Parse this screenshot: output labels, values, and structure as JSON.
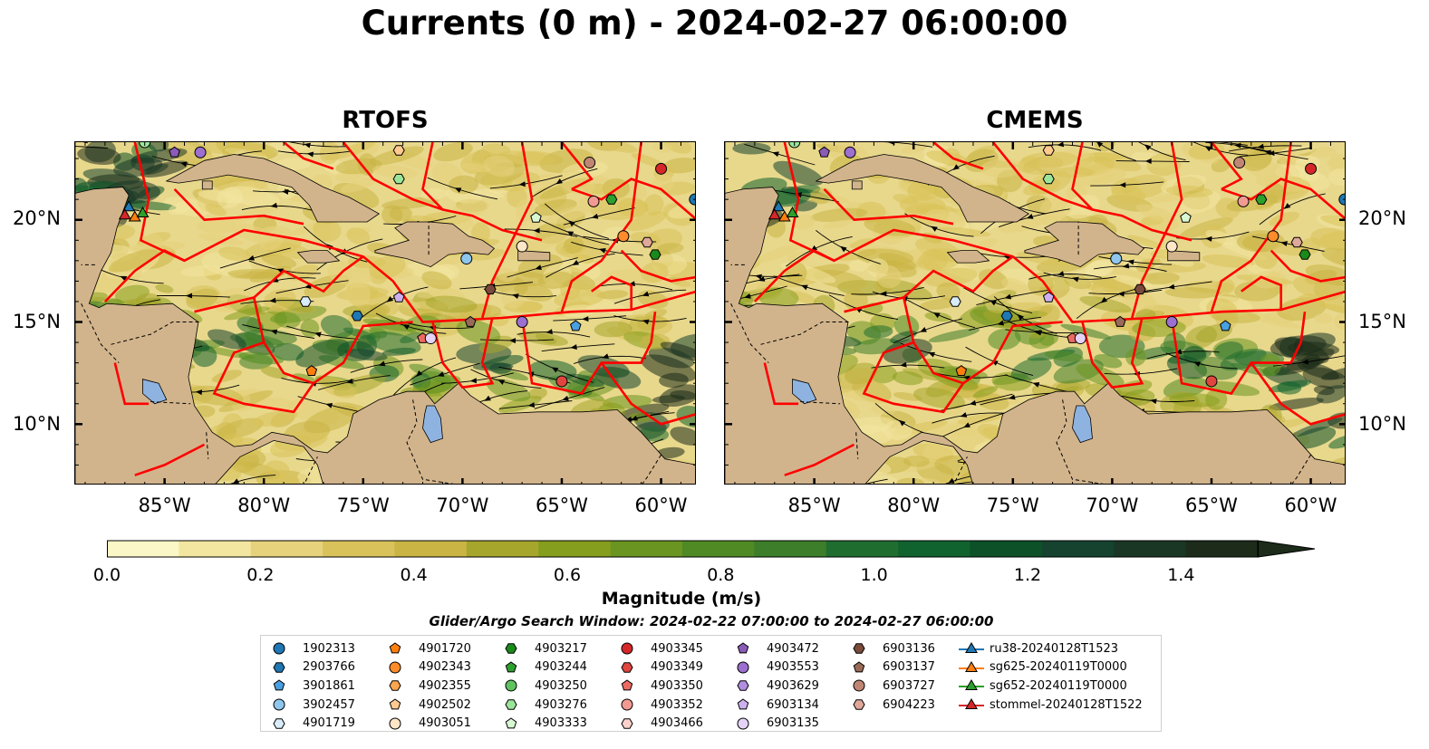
{
  "title": "Currents (0 m) - 2024-02-27 06:00:00",
  "panels": [
    {
      "title": "RTOFS"
    },
    {
      "title": "CMEMS"
    }
  ],
  "axes": {
    "lat_ticks": [
      "20°N",
      "15°N",
      "10°N"
    ],
    "lon_ticks": [
      "85°W",
      "80°W",
      "75°W",
      "70°W",
      "65°W",
      "60°W"
    ]
  },
  "colorbar": {
    "label": "Magnitude (m/s)",
    "ticks": [
      "0.0",
      "0.2",
      "0.4",
      "0.6",
      "0.8",
      "1.0",
      "1.2",
      "1.4"
    ],
    "range": [
      0.0,
      1.5
    ],
    "extend": "max",
    "colors": [
      "#fbf7c6",
      "#f3e6a0",
      "#e6d27c",
      "#d9c25a",
      "#c9b444",
      "#a6a52c",
      "#869e1e",
      "#6a9520",
      "#4f8a24",
      "#3d7e2a",
      "#1f6e30",
      "#10622e",
      "#0d5128",
      "#154330",
      "#1a3726",
      "#1c2b1a"
    ]
  },
  "search_window": "Glider/Argo Search Window: 2024-02-22 07:00:00 to 2024-02-27 06:00:00",
  "legend": {
    "columns": [
      [
        {
          "label": "1902313",
          "shape": "circle",
          "color": "#1f77b4"
        },
        {
          "label": "2903766",
          "shape": "hexagon",
          "color": "#1f77b4"
        },
        {
          "label": "3901861",
          "shape": "pentagon",
          "color": "#4a9fe0"
        },
        {
          "label": "3902457",
          "shape": "circle",
          "color": "#8ec6ee"
        },
        {
          "label": "4901719",
          "shape": "hexagon",
          "color": "#d8ecfa"
        }
      ],
      [
        {
          "label": "4901720",
          "shape": "pentagon",
          "color": "#ff7f0e"
        },
        {
          "label": "4902343",
          "shape": "circle",
          "color": "#ff8c2a"
        },
        {
          "label": "4902355",
          "shape": "hexagon",
          "color": "#ffa54f"
        },
        {
          "label": "4902502",
          "shape": "pentagon",
          "color": "#ffc98f"
        },
        {
          "label": "4903051",
          "shape": "circle",
          "color": "#ffe6c7"
        }
      ],
      [
        {
          "label": "4903217",
          "shape": "hexagon",
          "color": "#1a8a1a"
        },
        {
          "label": "4903244",
          "shape": "pentagon",
          "color": "#2ca02c"
        },
        {
          "label": "4903250",
          "shape": "circle",
          "color": "#5fc35f"
        },
        {
          "label": "4903276",
          "shape": "hexagon",
          "color": "#9be59b"
        },
        {
          "label": "4903333",
          "shape": "pentagon",
          "color": "#d9f7d2"
        }
      ],
      [
        {
          "label": "4903345",
          "shape": "circle",
          "color": "#d62728"
        },
        {
          "label": "4903349",
          "shape": "hexagon",
          "color": "#e0463f"
        },
        {
          "label": "4903350",
          "shape": "pentagon",
          "color": "#eb6b62"
        },
        {
          "label": "4903352",
          "shape": "circle",
          "color": "#f29a92"
        },
        {
          "label": "4903466",
          "shape": "hexagon",
          "color": "#fcd1cc"
        }
      ],
      [
        {
          "label": "4903472",
          "shape": "pentagon",
          "color": "#8b5bb8"
        },
        {
          "label": "4903553",
          "shape": "circle",
          "color": "#9c6fd0"
        },
        {
          "label": "4903629",
          "shape": "hexagon",
          "color": "#b28ee0"
        },
        {
          "label": "6903134",
          "shape": "pentagon",
          "color": "#ccb1ee"
        },
        {
          "label": "6903135",
          "shape": "circle",
          "color": "#e4d3f7"
        }
      ],
      [
        {
          "label": "6903136",
          "shape": "hexagon",
          "color": "#7a4a3a"
        },
        {
          "label": "6903137",
          "shape": "pentagon",
          "color": "#9a6a58"
        },
        {
          "label": "6903727",
          "shape": "circle",
          "color": "#c08673"
        },
        {
          "label": "6904223",
          "shape": "hexagon",
          "color": "#dfa89a"
        }
      ],
      [
        {
          "label": "ru38-20240128T1523",
          "shape": "triangle-line",
          "color": "#1f77b4"
        },
        {
          "label": "sg625-20240119T0000",
          "shape": "triangle-line",
          "color": "#ff7f0e"
        },
        {
          "label": "sg652-20240119T0000",
          "shape": "triangle-line",
          "color": "#2ca02c"
        },
        {
          "label": "stommel-20240128T1522",
          "shape": "triangle-line",
          "color": "#d62728"
        }
      ]
    ]
  },
  "map": {
    "land_color": "#d2b48c",
    "lake_color": "#8fb3e0",
    "boundary_color": "#ff0000",
    "extent_lon": [
      -89.5,
      -58.2
    ],
    "extent_lat": [
      7.0,
      23.8
    ]
  },
  "markers": [
    {
      "lon": -86.0,
      "lat": 23.8,
      "shape": "circle",
      "color": "#9be59b"
    },
    {
      "lon": -84.5,
      "lat": 23.3,
      "shape": "pentagon",
      "color": "#8b5bb8"
    },
    {
      "lon": -83.2,
      "lat": 23.3,
      "shape": "circle",
      "color": "#9c6fd0"
    },
    {
      "lon": -73.2,
      "lat": 23.4,
      "shape": "hexagon",
      "color": "#ffc98f"
    },
    {
      "lon": -73.2,
      "lat": 22.0,
      "shape": "hexagon",
      "color": "#9be59b"
    },
    {
      "lon": -63.6,
      "lat": 22.8,
      "shape": "circle",
      "color": "#c08673"
    },
    {
      "lon": -60.0,
      "lat": 22.5,
      "shape": "circle",
      "color": "#d62728"
    },
    {
      "lon": -58.3,
      "lat": 21.0,
      "shape": "circle",
      "color": "#1f77b4"
    },
    {
      "lon": -63.4,
      "lat": 20.9,
      "shape": "circle",
      "color": "#f29a92"
    },
    {
      "lon": -62.5,
      "lat": 21.0,
      "shape": "hexagon",
      "color": "#2ca02c"
    },
    {
      "lon": -66.3,
      "lat": 20.1,
      "shape": "pentagon",
      "color": "#d9f7d2"
    },
    {
      "lon": -61.9,
      "lat": 19.2,
      "shape": "circle",
      "color": "#ff8c2a"
    },
    {
      "lon": -60.7,
      "lat": 18.9,
      "shape": "hexagon",
      "color": "#dfa89a"
    },
    {
      "lon": -67.0,
      "lat": 18.7,
      "shape": "circle",
      "color": "#ffe6c7"
    },
    {
      "lon": -60.3,
      "lat": 18.3,
      "shape": "hexagon",
      "color": "#1a8a1a"
    },
    {
      "lon": -69.8,
      "lat": 18.1,
      "shape": "circle",
      "color": "#8ec6ee"
    },
    {
      "lon": -68.6,
      "lat": 16.6,
      "shape": "hexagon",
      "color": "#7a4a3a"
    },
    {
      "lon": -73.2,
      "lat": 16.2,
      "shape": "pentagon",
      "color": "#ccb1ee"
    },
    {
      "lon": -77.9,
      "lat": 16.0,
      "shape": "hexagon",
      "color": "#d8ecfa"
    },
    {
      "lon": -75.3,
      "lat": 15.3,
      "shape": "hexagon",
      "color": "#1f77b4"
    },
    {
      "lon": -69.6,
      "lat": 15.0,
      "shape": "pentagon",
      "color": "#9a6a58"
    },
    {
      "lon": -67.0,
      "lat": 15.0,
      "shape": "circle",
      "color": "#9c6fd0"
    },
    {
      "lon": -64.3,
      "lat": 14.8,
      "shape": "pentagon",
      "color": "#4a9fe0"
    },
    {
      "lon": -72.0,
      "lat": 14.2,
      "shape": "pentagon",
      "color": "#eb6b62"
    },
    {
      "lon": -71.6,
      "lat": 14.2,
      "shape": "circle",
      "color": "#e4d3f7"
    },
    {
      "lon": -77.6,
      "lat": 12.6,
      "shape": "pentagon",
      "color": "#ff7f0e"
    },
    {
      "lon": -65.0,
      "lat": 12.1,
      "shape": "circle",
      "color": "#e0463f"
    },
    {
      "lon": -86.8,
      "lat": 20.6,
      "shape": "triangle",
      "color": "#1f77b4"
    },
    {
      "lon": -87.0,
      "lat": 20.2,
      "shape": "triangle",
      "color": "#d62728"
    },
    {
      "lon": -86.5,
      "lat": 20.1,
      "shape": "triangle",
      "color": "#ff7f0e"
    },
    {
      "lon": -86.1,
      "lat": 20.3,
      "shape": "triangle",
      "color": "#2ca02c"
    }
  ]
}
